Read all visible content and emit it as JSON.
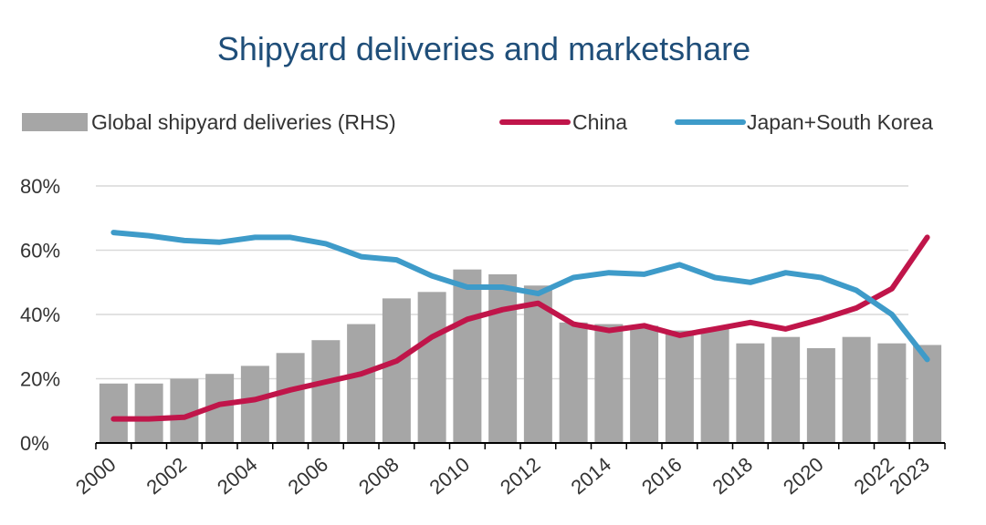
{
  "chart_data": {
    "type": "bar+line",
    "title": "Shipyard deliveries and marketshare",
    "x": [
      2000,
      2001,
      2002,
      2003,
      2004,
      2005,
      2006,
      2007,
      2008,
      2009,
      2010,
      2011,
      2012,
      2013,
      2014,
      2015,
      2016,
      2017,
      2018,
      2019,
      2020,
      2021,
      2022,
      2023
    ],
    "x_tick_labels": [
      "2000",
      "2002",
      "2004",
      "2006",
      "2008",
      "2010",
      "2012",
      "2014",
      "2016",
      "2018",
      "2020",
      "2022",
      "2023"
    ],
    "y_tick_labels": [
      "0%",
      "20%",
      "40%",
      "60%",
      "80%"
    ],
    "ylim": [
      0,
      80
    ],
    "grid": true,
    "legend_position": "top",
    "bars": {
      "name": "Global shipyard deliveries (RHS)",
      "color": "#a6a6a6",
      "values": [
        18.5,
        18.5,
        20,
        21.5,
        24,
        28,
        32,
        37,
        45,
        47,
        54,
        52.5,
        49,
        37.5,
        37,
        36.5,
        35,
        35.5,
        31,
        33,
        29.5,
        33,
        31,
        30.5
      ]
    },
    "series": [
      {
        "name": "China",
        "color": "#c0154a",
        "values": [
          7.5,
          7.5,
          8,
          12,
          13.5,
          16.5,
          19,
          21.5,
          25.5,
          33,
          38.5,
          41.5,
          43.5,
          37,
          35,
          36.5,
          33.5,
          35.5,
          37.5,
          35.5,
          38.5,
          42,
          48,
          64
        ]
      },
      {
        "name": "Japan+South Korea",
        "color": "#3e9bc9",
        "values": [
          65.5,
          64.5,
          63,
          62.5,
          64,
          64,
          62,
          58,
          57,
          52,
          48.5,
          48.5,
          46.5,
          51.5,
          53,
          52.5,
          55.5,
          51.5,
          50,
          53,
          51.5,
          47.5,
          40,
          26
        ]
      }
    ]
  }
}
